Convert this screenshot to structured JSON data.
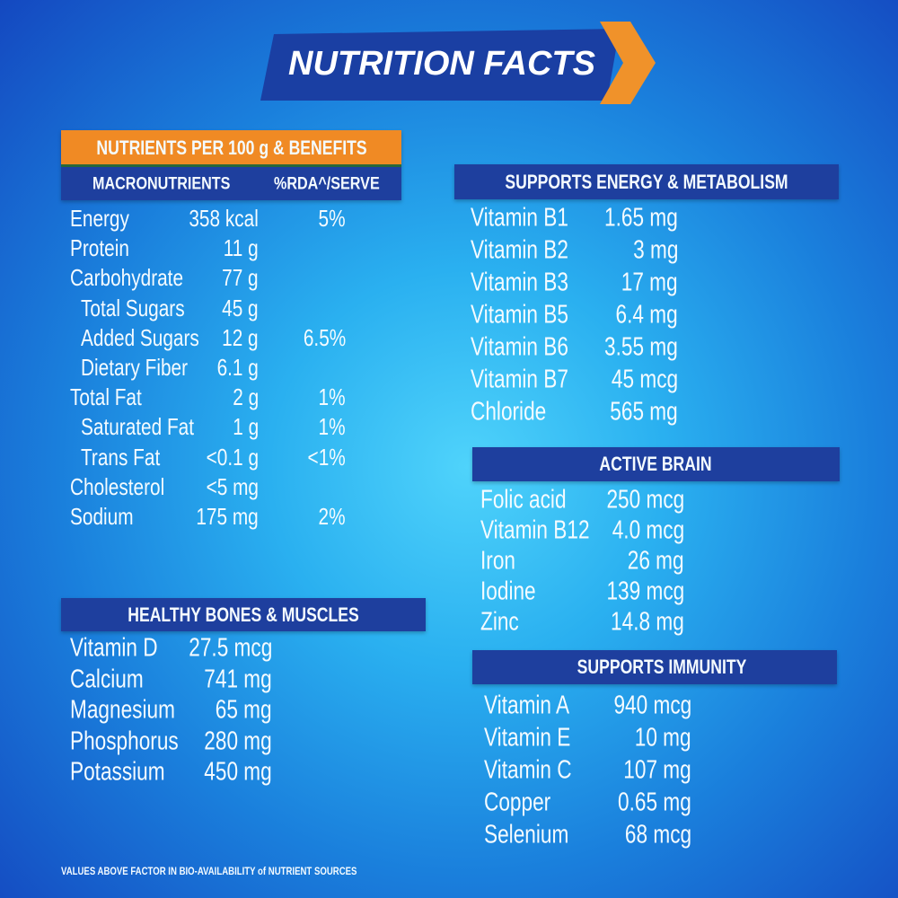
{
  "title": "NUTRITION FACTS",
  "macros": {
    "heading": "NUTRIENTS PER 100 g & BENEFITS",
    "columns": [
      "MACRONUTRIENTS",
      "%RDA^/SERVE"
    ],
    "rows": [
      {
        "name": "Energy",
        "amount": "358 kcal",
        "rda": "5%"
      },
      {
        "name": "Protein",
        "amount": "11 g"
      },
      {
        "name": "Carbohydrate",
        "amount": "77 g",
        "items": [
          {
            "name": "Total Sugars",
            "amount": "45 g"
          },
          {
            "name": "Added Sugars",
            "amount": "12 g",
            "rda": "6.5%"
          },
          {
            "name": "Dietary Fiber",
            "amount": "6.1 g"
          }
        ]
      },
      {
        "name": "Total Fat",
        "amount": "2 g",
        "rda": "1%",
        "items": [
          {
            "name": "Saturated Fat",
            "amount": "1 g",
            "rda": "1%"
          },
          {
            "name": "Trans Fat",
            "amount": "<0.1 g",
            "rda": "<1%"
          }
        ]
      },
      {
        "name": "Cholesterol",
        "amount": "<5 mg"
      },
      {
        "name": "Sodium",
        "amount": "175 mg",
        "rda": "2%"
      }
    ]
  },
  "bones": {
    "heading": "HEALTHY BONES & MUSCLES",
    "rows": [
      {
        "name": "Vitamin D",
        "amount": "27.5 mcg"
      },
      {
        "name": "Calcium",
        "amount": "741 mg"
      },
      {
        "name": "Magnesium",
        "amount": "65 mg"
      },
      {
        "name": "Phosphorus",
        "amount": "280 mg"
      },
      {
        "name": "Potassium",
        "amount": "450 mg"
      }
    ]
  },
  "energy": {
    "heading": "SUPPORTS ENERGY & METABOLISM",
    "rows": [
      {
        "name": "Vitamin B1",
        "amount": "1.65 mg"
      },
      {
        "name": "Vitamin B2",
        "amount": "3 mg"
      },
      {
        "name": "Vitamin B3",
        "amount": "17 mg"
      },
      {
        "name": "Vitamin B5",
        "amount": "6.4 mg"
      },
      {
        "name": "Vitamin B6",
        "amount": "3.55 mg"
      },
      {
        "name": "Vitamin B7",
        "amount": "45 mcg"
      },
      {
        "name": "Chloride",
        "amount": "565 mg"
      }
    ]
  },
  "brain": {
    "heading": "ACTIVE BRAIN",
    "rows": [
      {
        "name": "Folic acid",
        "amount": "250 mcg"
      },
      {
        "name": "Vitamin B12",
        "amount": "4.0 mcg"
      },
      {
        "name": "Iron",
        "amount": "26 mg"
      },
      {
        "name": "Iodine",
        "amount": "139 mcg"
      },
      {
        "name": "Zinc",
        "amount": "14.8 mg"
      }
    ]
  },
  "immunity": {
    "heading": "SUPPORTS IMMUNITY",
    "rows": [
      {
        "name": "Vitamin A",
        "amount": "940 mcg"
      },
      {
        "name": "Vitamin E",
        "amount": "10 mg"
      },
      {
        "name": "Vitamin C",
        "amount": "107 mg"
      },
      {
        "name": "Copper",
        "amount": "0.65 mg"
      },
      {
        "name": "Selenium",
        "amount": "68 mcg"
      }
    ]
  },
  "footnote": "VALUES ABOVE FACTOR IN BIO-AVAILABILITY of NUTRIENT SOURCES"
}
